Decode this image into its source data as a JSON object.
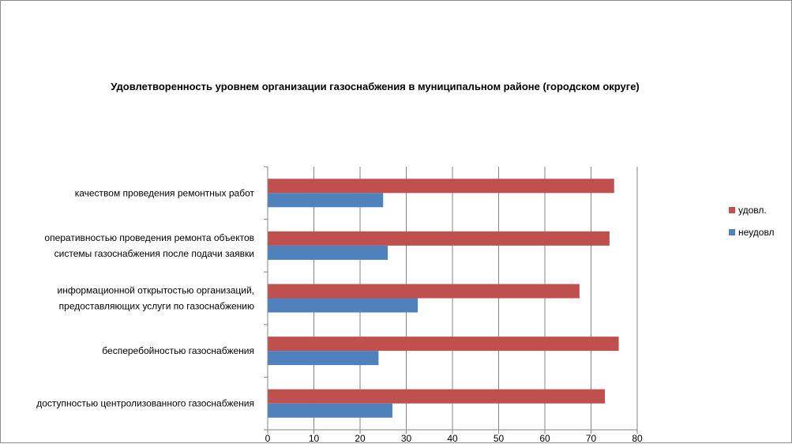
{
  "chart_data": {
    "type": "bar",
    "orientation": "horizontal",
    "title": "Удовлетворенность уровнем организации газоснабжения в муниципальном районе (городском округе)",
    "categories": [
      [
        "качеством проведения ремонтных работ"
      ],
      [
        "оперативностью проведения ремонта объектов",
        "системы газоснабжения после подачи заявки"
      ],
      [
        "информационной открытостью организаций,",
        "предоставляющих услуги по газоснабжению"
      ],
      [
        "бесперебойностью газоснабжения"
      ],
      [
        "доступностью центролизованного газоснабжения"
      ]
    ],
    "series": [
      {
        "name": "удовл.",
        "color": "#c0504d",
        "values": [
          75,
          74,
          67.5,
          76,
          73
        ]
      },
      {
        "name": "неудовл",
        "color": "#4f81bd",
        "values": [
          25,
          26,
          32.5,
          24,
          27
        ]
      }
    ],
    "xlim": [
      0,
      80
    ],
    "xticks": [
      0,
      10,
      20,
      30,
      40,
      50,
      60,
      70,
      80
    ],
    "grid": true,
    "legend_position": "right"
  }
}
